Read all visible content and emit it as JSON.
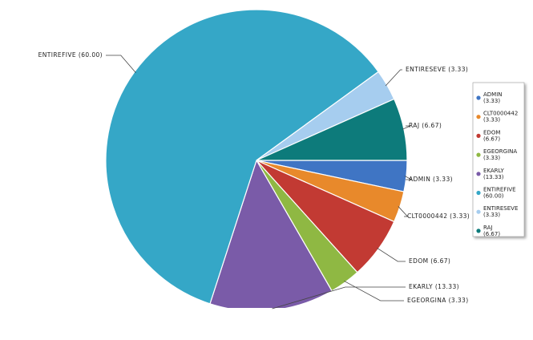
{
  "chart_data": {
    "type": "pie",
    "categories": [
      "ADMIN",
      "CLT0000442",
      "EDOM",
      "EGEORGINA",
      "EKARLY",
      "ENTIREFIVE",
      "ENTIRESEVE",
      "RAJ"
    ],
    "values": [
      3.33,
      3.33,
      6.67,
      3.33,
      13.33,
      60.0,
      3.33,
      6.67
    ],
    "value_labels": [
      "(3.33)",
      "(3.33)",
      "(6.67)",
      "(3.33)",
      "(13.33)",
      "(60.00)",
      "(3.33)",
      "(6.67)"
    ],
    "colors": [
      "#3f75c4",
      "#e8892b",
      "#c23a33",
      "#8fb843",
      "#7a5ba8",
      "#35a7c7",
      "#a6cdef",
      "#0d7b7b"
    ],
    "legend": "right"
  }
}
